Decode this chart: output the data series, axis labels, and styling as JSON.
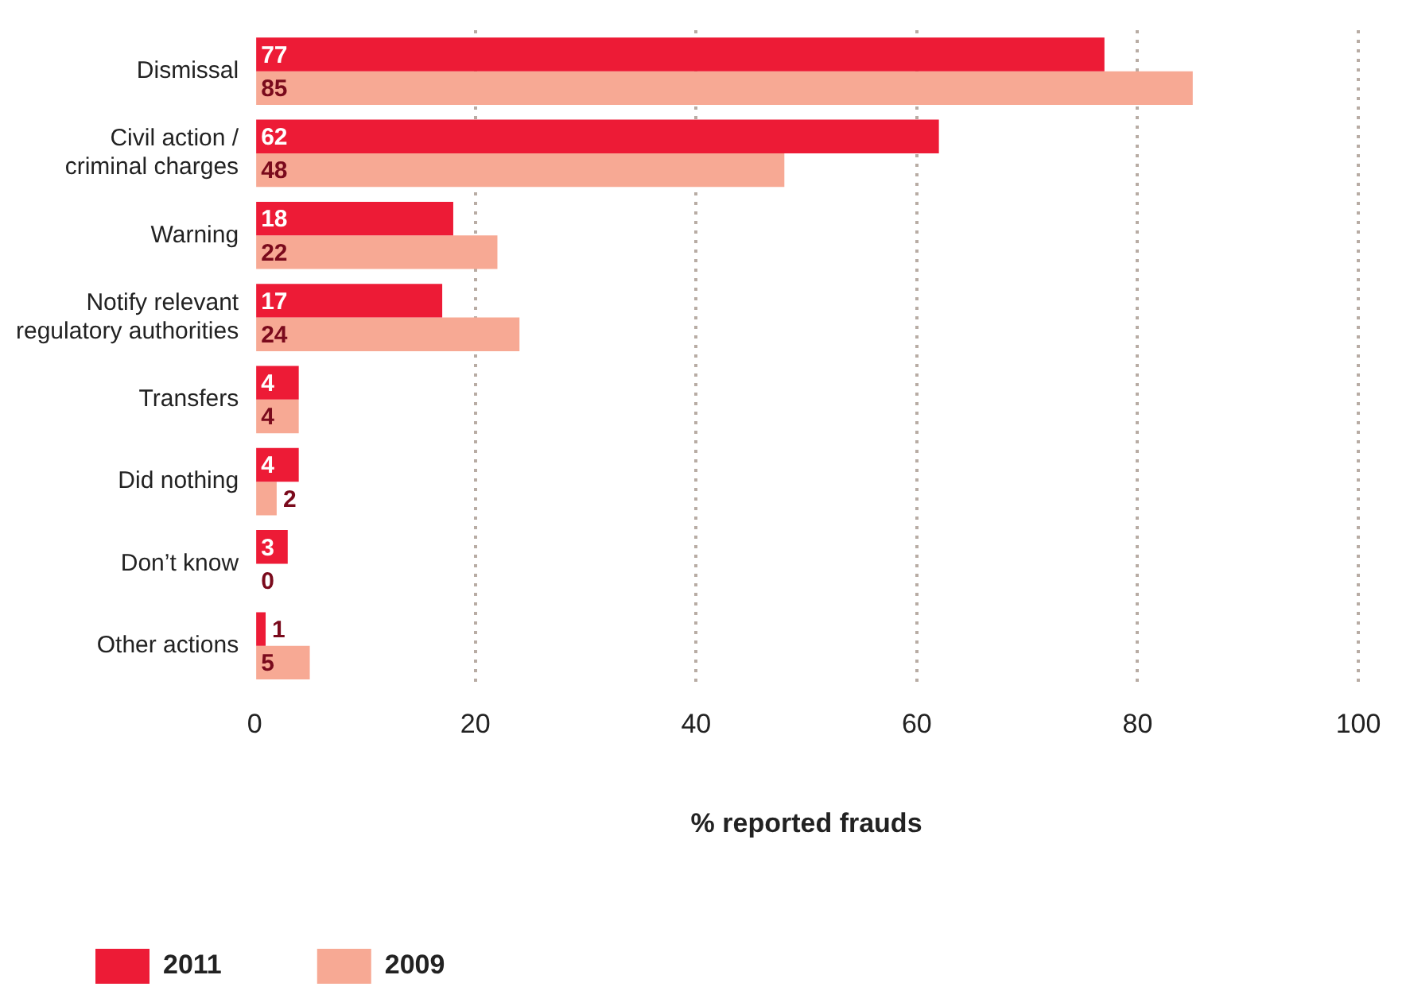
{
  "chart_data": {
    "type": "bar",
    "orientation": "horizontal",
    "xlabel": "% reported frauds",
    "categories": [
      "Dismissal",
      "Civil action / criminal charges",
      "Warning",
      "Notify relevant regulatory authorities",
      "Transfers",
      "Did nothing",
      "Don’t know",
      "Other actions"
    ],
    "series": [
      {
        "name": "2011",
        "color": "#ed1b36",
        "values": [
          77,
          62,
          18,
          17,
          4,
          4,
          3,
          1
        ]
      },
      {
        "name": "2009",
        "color": "#f7a994",
        "values": [
          85,
          48,
          22,
          24,
          4,
          2,
          0,
          5
        ]
      }
    ],
    "xlim": [
      0,
      100
    ],
    "xticks": [
      0,
      20,
      40,
      60,
      80,
      100
    ],
    "grid": "x",
    "legend": "bottom",
    "data_labels": true
  }
}
